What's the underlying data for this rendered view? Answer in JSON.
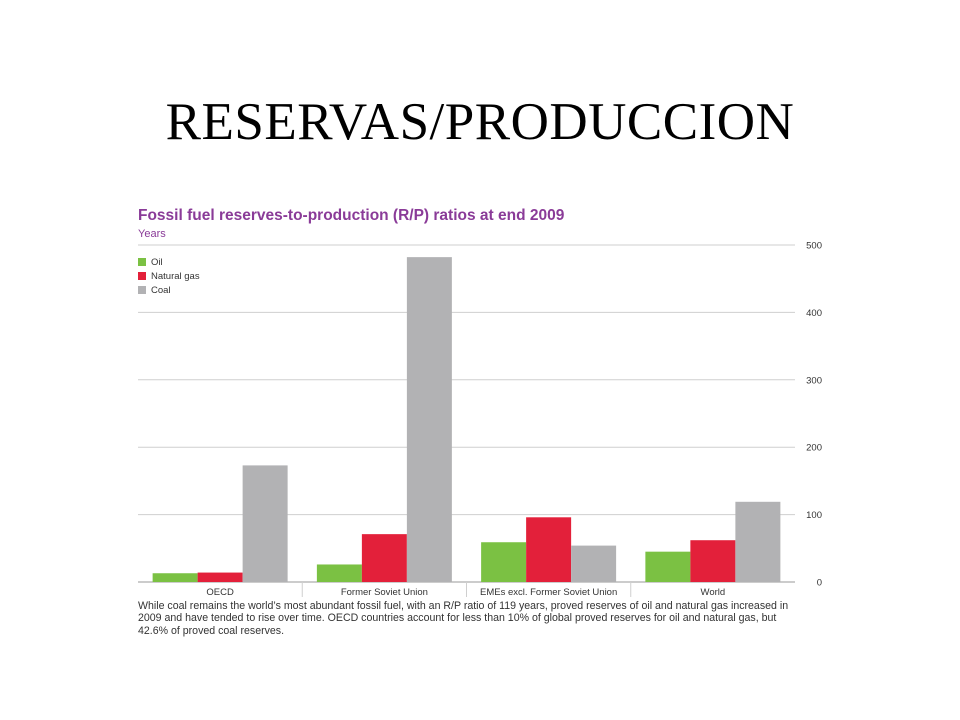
{
  "slide": {
    "title": "RESERVAS/PRODUCCION"
  },
  "chart_data": {
    "type": "bar",
    "title": "Fossil fuel reserves-to-production (R/P) ratios at end 2009",
    "subtitle": "Years",
    "categories": [
      "OECD",
      "Former Soviet Union",
      "EMEs excl. Former Soviet Union",
      "World"
    ],
    "series": [
      {
        "name": "Oil",
        "values": [
          13,
          26,
          59,
          45
        ]
      },
      {
        "name": "Natural gas",
        "values": [
          14,
          71,
          96,
          62
        ]
      },
      {
        "name": "Coal",
        "values": [
          173,
          482,
          54,
          119
        ]
      }
    ],
    "colors": [
      "#7bc143",
      "#e3203a",
      "#b2b2b4"
    ],
    "ylim": [
      0,
      500
    ],
    "yticks": [
      0,
      100,
      200,
      300,
      400,
      500
    ],
    "y_axis_side": "right",
    "grid": true,
    "legend_position": "top-left",
    "caption": "While coal remains the world’s most abundant fossil fuel, with an R/P ratio of 119 years, proved reserves of oil and natural gas increased in 2009 and have tended to rise over time. OECD countries account for less than 10% of global proved reserves for oil and natural gas, but 42.6% of proved coal reserves."
  }
}
